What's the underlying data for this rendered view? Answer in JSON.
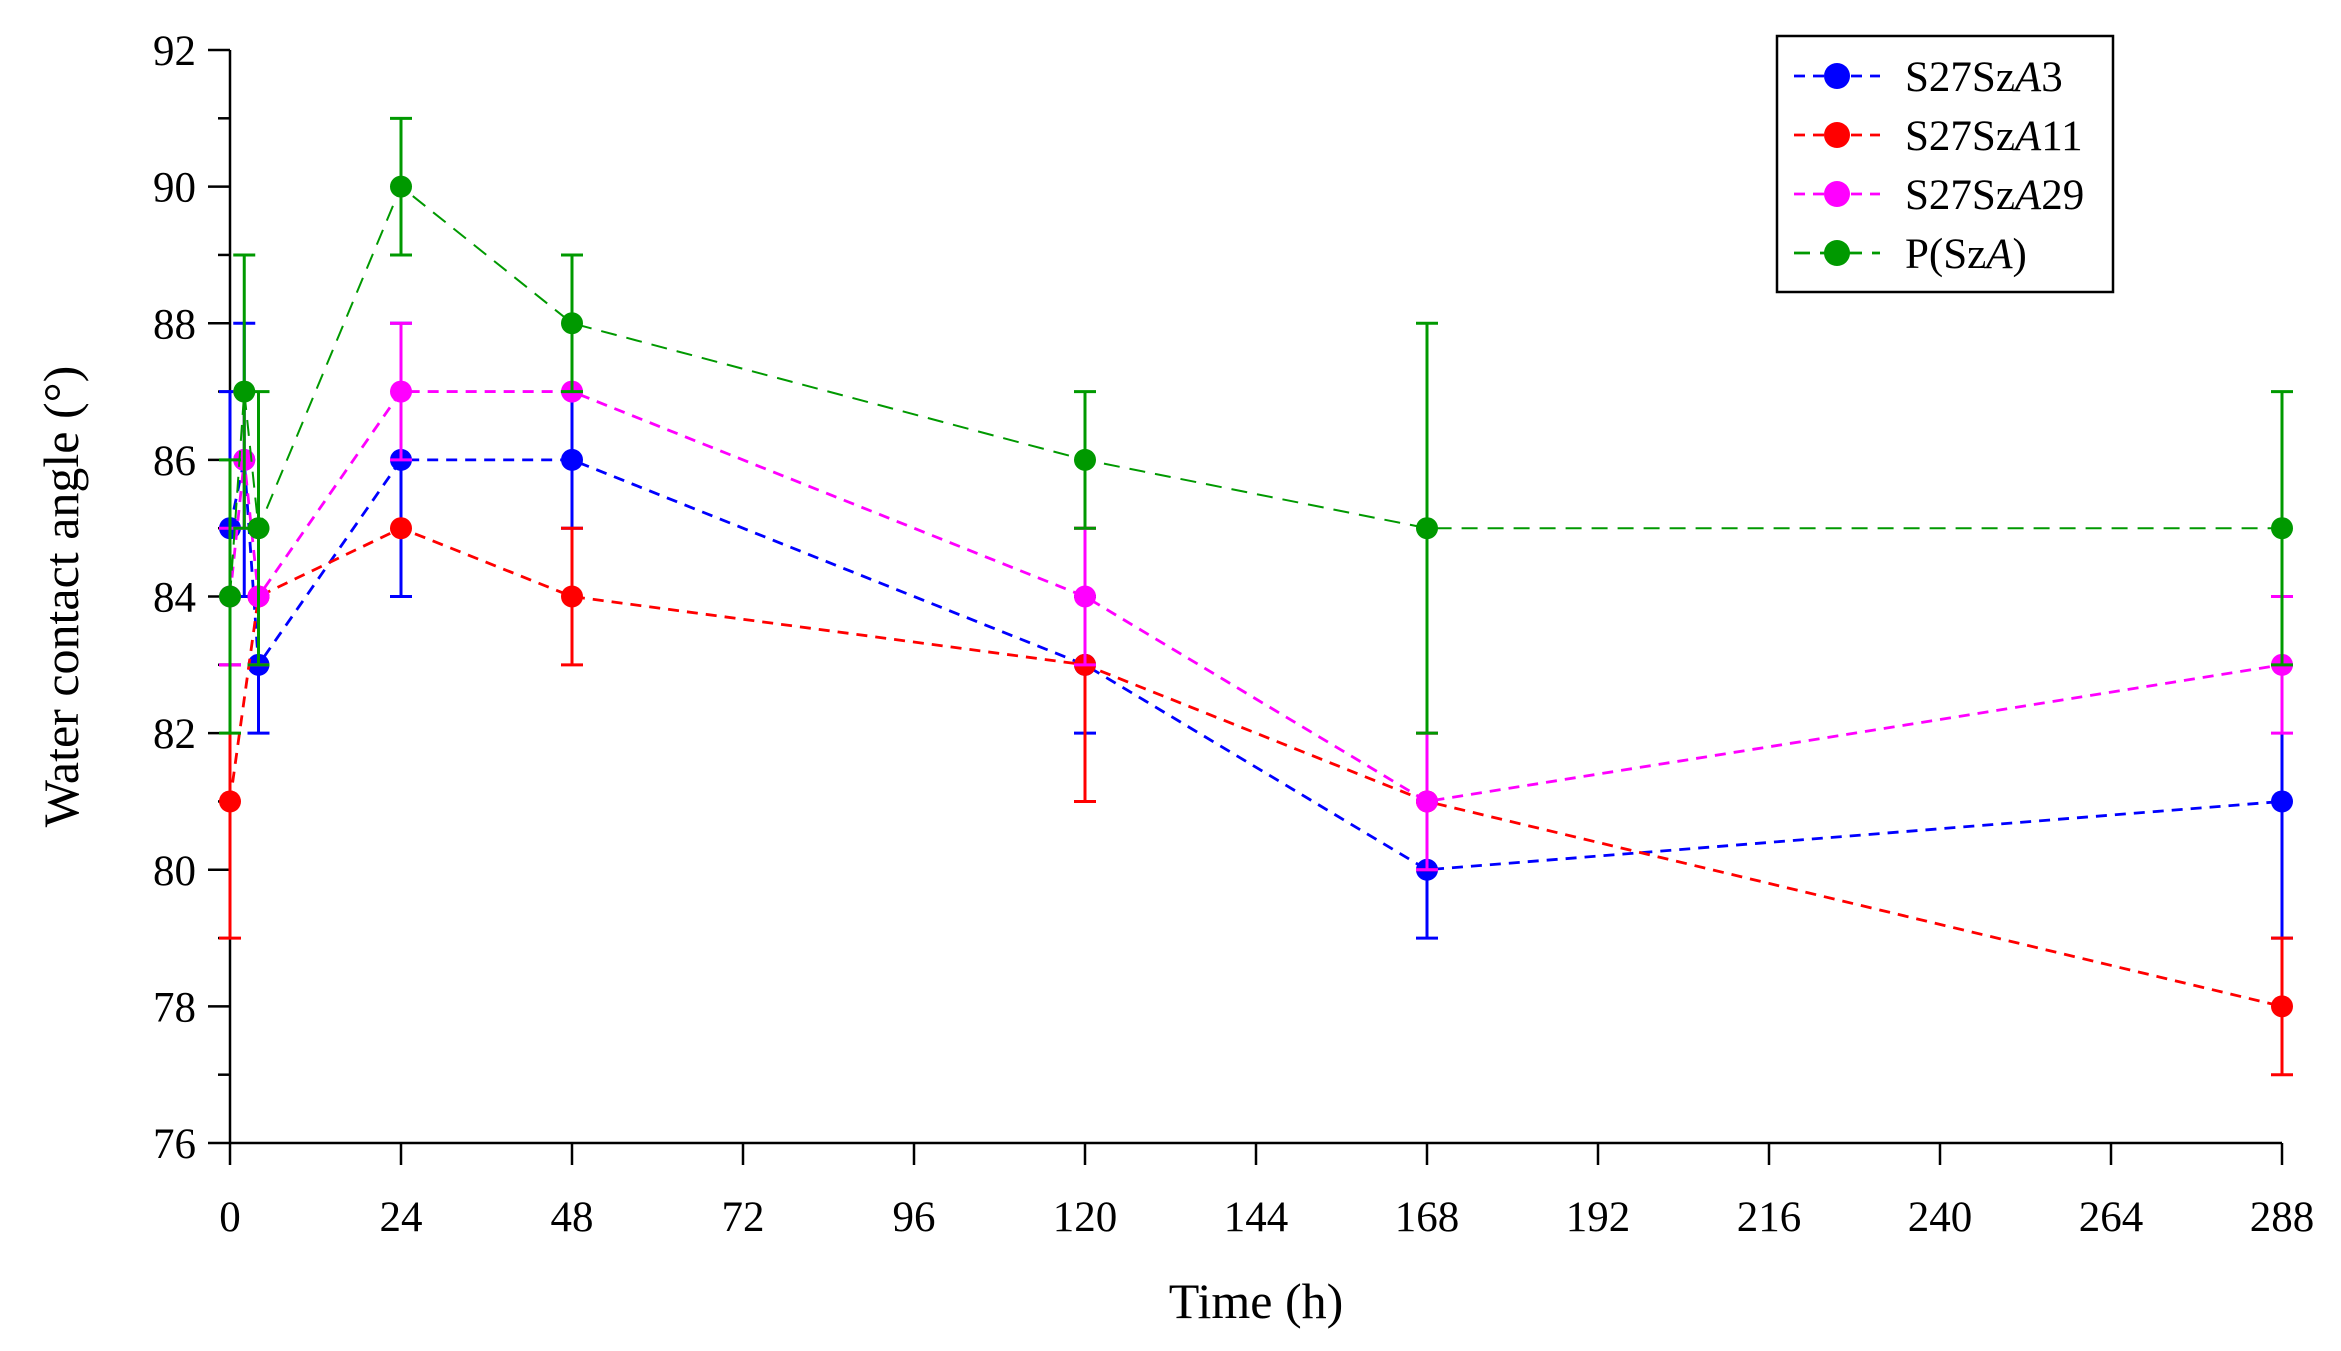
{
  "chart_data": {
    "type": "line",
    "title": "",
    "xlabel": "Time (h)",
    "ylabel": "Water contact angle (°)",
    "xlim": [
      0,
      288
    ],
    "ylim": [
      76,
      92
    ],
    "x_ticks": [
      0,
      24,
      48,
      72,
      96,
      120,
      144,
      168,
      192,
      216,
      240,
      264,
      288
    ],
    "y_ticks": [
      76,
      78,
      80,
      82,
      84,
      86,
      88,
      90,
      92
    ],
    "grid": false,
    "legend_position": "top-right",
    "series": [
      {
        "name": "S27SzA3",
        "legend": {
          "prefix": "S27Sz",
          "italic": "A",
          "suffix": "3"
        },
        "color": "#0000FF",
        "dash": "short",
        "x": [
          0,
          2,
          4,
          24,
          48,
          120,
          168,
          288
        ],
        "y": [
          85,
          86,
          83,
          86,
          86,
          83,
          80,
          81
        ],
        "err": [
          2,
          2,
          1,
          2,
          1,
          1,
          1,
          2
        ]
      },
      {
        "name": "S27SzA11",
        "legend": {
          "prefix": "S27Sz",
          "italic": "A",
          "suffix": "11"
        },
        "color": "#FF0000",
        "dash": "short",
        "x": [
          0,
          4,
          24,
          48,
          120,
          168,
          288
        ],
        "y": [
          81,
          84,
          85,
          84,
          83,
          81,
          78
        ],
        "err": [
          2,
          1,
          0,
          1,
          2,
          1,
          1
        ]
      },
      {
        "name": "S27SzA29",
        "legend": {
          "prefix": "S27Sz",
          "italic": "A",
          "suffix": "29"
        },
        "color": "#FF00FF",
        "dash": "short",
        "x": [
          0,
          2,
          4,
          24,
          48,
          120,
          168,
          288
        ],
        "y": [
          84,
          86,
          84,
          87,
          87,
          84,
          81,
          83
        ],
        "err": [
          1,
          1,
          1,
          1,
          0,
          1,
          1,
          1
        ]
      },
      {
        "name": "P(SzA)",
        "legend": {
          "prefix": "P(Sz",
          "italic": "A",
          "suffix": ")"
        },
        "color": "#009900",
        "dash": "long",
        "x": [
          0,
          2,
          4,
          24,
          48,
          120,
          168,
          288
        ],
        "y": [
          84,
          87,
          85,
          90,
          88,
          86,
          85,
          85
        ],
        "err": [
          2,
          2,
          2,
          1,
          1,
          1,
          3,
          2
        ]
      }
    ]
  }
}
